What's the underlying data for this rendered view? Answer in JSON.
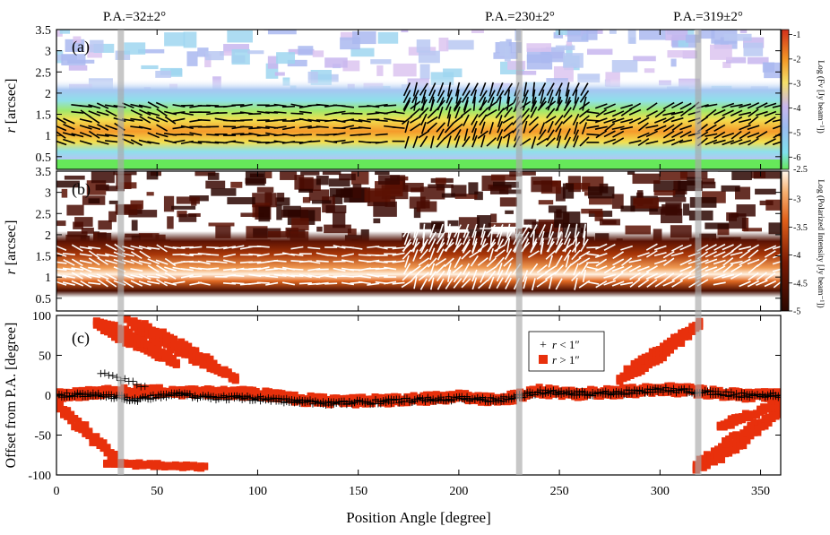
{
  "figure": {
    "pa_markers": [
      {
        "label": "P.A.=32±2°",
        "pa": 32
      },
      {
        "label": "P.A.=230±2°",
        "pa": 230
      },
      {
        "label": "P.A.=319±2°",
        "pa": 319
      }
    ],
    "xlabel": "Position Angle [degree]",
    "x_ticks": [
      "0",
      "50",
      "100",
      "150",
      "200",
      "250",
      "300",
      "350"
    ]
  },
  "chart_data": [
    {
      "panel": "(a)",
      "type": "heatmap",
      "ylabel": "r [arcsec]",
      "xlim": [
        0,
        360
      ],
      "ylim": [
        0.2,
        3.5
      ],
      "y_ticks": [
        "0.5",
        "1",
        "1.5",
        "2",
        "2.5",
        "3",
        "3.5"
      ],
      "colorbar": {
        "label": "Log (Fν [Jy beam⁻¹])",
        "range": [
          -6.5,
          -0.8
        ],
        "ticks": [
          "-1",
          "-2",
          "-3",
          "-4",
          "-5",
          "-6"
        ],
        "colormap": "rainbow",
        "bottom_tick": "-2.5"
      },
      "ridge_r_arcsec": 1.2,
      "vectors": "black polarization vectors in 0.8–2.1 arcsec band",
      "grid": false
    },
    {
      "panel": "(b)",
      "type": "heatmap",
      "ylabel": "r [arcsec]",
      "xlim": [
        0,
        360
      ],
      "ylim": [
        0.2,
        3.5
      ],
      "y_ticks": [
        "0.5",
        "1",
        "1.5",
        "2",
        "2.5",
        "3",
        "3.5"
      ],
      "colorbar": {
        "label": "Log (Polarized Intensity [Jy beam⁻¹])",
        "range": [
          -5,
          -2.5
        ],
        "ticks": [
          "-3",
          "-3.5",
          "-4",
          "-4.5",
          "-5"
        ],
        "colormap": "hot"
      },
      "ridge_r_arcsec": 0.95,
      "vectors": "white polarization vectors in 0.8–2.1 arcsec band",
      "grid": false
    },
    {
      "panel": "(c)",
      "type": "scatter",
      "ylabel": "Offset from P.A. [degree]",
      "xlim": [
        0,
        360
      ],
      "ylim": [
        -100,
        100
      ],
      "y_ticks": [
        "100",
        "50",
        "0",
        "-50",
        "-100"
      ],
      "legend_position": "top-right",
      "series": [
        {
          "name": "r < 1″",
          "marker": "plus",
          "color": "#000000",
          "x": [
            0,
            20,
            40,
            60,
            80,
            100,
            120,
            140,
            160,
            180,
            200,
            220,
            240,
            260,
            280,
            300,
            320,
            340,
            360
          ],
          "y": [
            0,
            1,
            -5,
            1,
            -3,
            -4,
            -8,
            -10,
            -8,
            -6,
            -4,
            -6,
            4,
            2,
            3,
            7,
            4,
            0,
            0
          ]
        },
        {
          "name": "r > 1″",
          "marker": "square",
          "color": "#e8300c",
          "x": [
            0,
            20,
            40,
            60,
            80,
            100,
            120,
            140,
            160,
            180,
            200,
            220,
            240,
            260,
            280,
            300,
            320,
            340,
            360
          ],
          "y": [
            0,
            3,
            5,
            4,
            3,
            2,
            -5,
            -8,
            -7,
            -5,
            -2,
            -7,
            5,
            2,
            4,
            8,
            5,
            0,
            0
          ]
        }
      ],
      "grid": false
    }
  ]
}
